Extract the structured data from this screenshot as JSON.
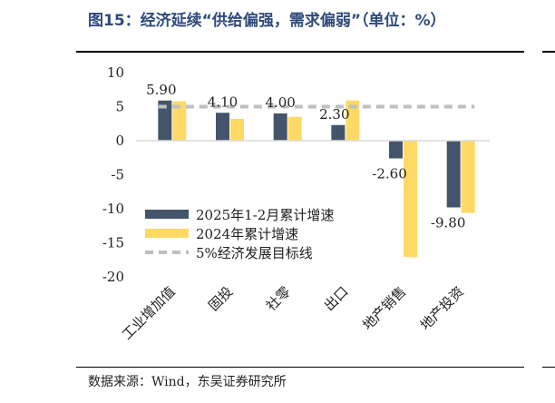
{
  "title": "图15：经济延续“供给偏强，需求偏弱”（单位：%）",
  "source": "数据来源：Wind，东吴证券研究所",
  "chart_data": {
    "type": "bar",
    "categories": [
      "工业增加值",
      "固投",
      "社零",
      "出口",
      "地产销售",
      "地产投资"
    ],
    "series": [
      {
        "name": "2025年1-2月累计增速",
        "color": "#44546a",
        "values": [
          5.9,
          4.1,
          4.0,
          2.3,
          -2.6,
          -9.8
        ]
      },
      {
        "name": "2024年累计增速",
        "color": "#ffd966",
        "values": [
          5.8,
          3.2,
          3.5,
          5.9,
          -17.1,
          -10.6
        ]
      }
    ],
    "data_labels": [
      "5.90",
      "4.10",
      "4.00",
      "2.30",
      "-2.60",
      "-9.80"
    ],
    "reference_line": {
      "name": "5%经济发展目标线",
      "value": 5,
      "color": "#bfbfbf",
      "style": "dashed"
    },
    "yticks": [
      "10",
      "5",
      "0",
      "-5",
      "-10",
      "-15",
      "-20"
    ],
    "ylim": [
      -20,
      10
    ],
    "legend_position": "left-middle",
    "grid": false
  }
}
